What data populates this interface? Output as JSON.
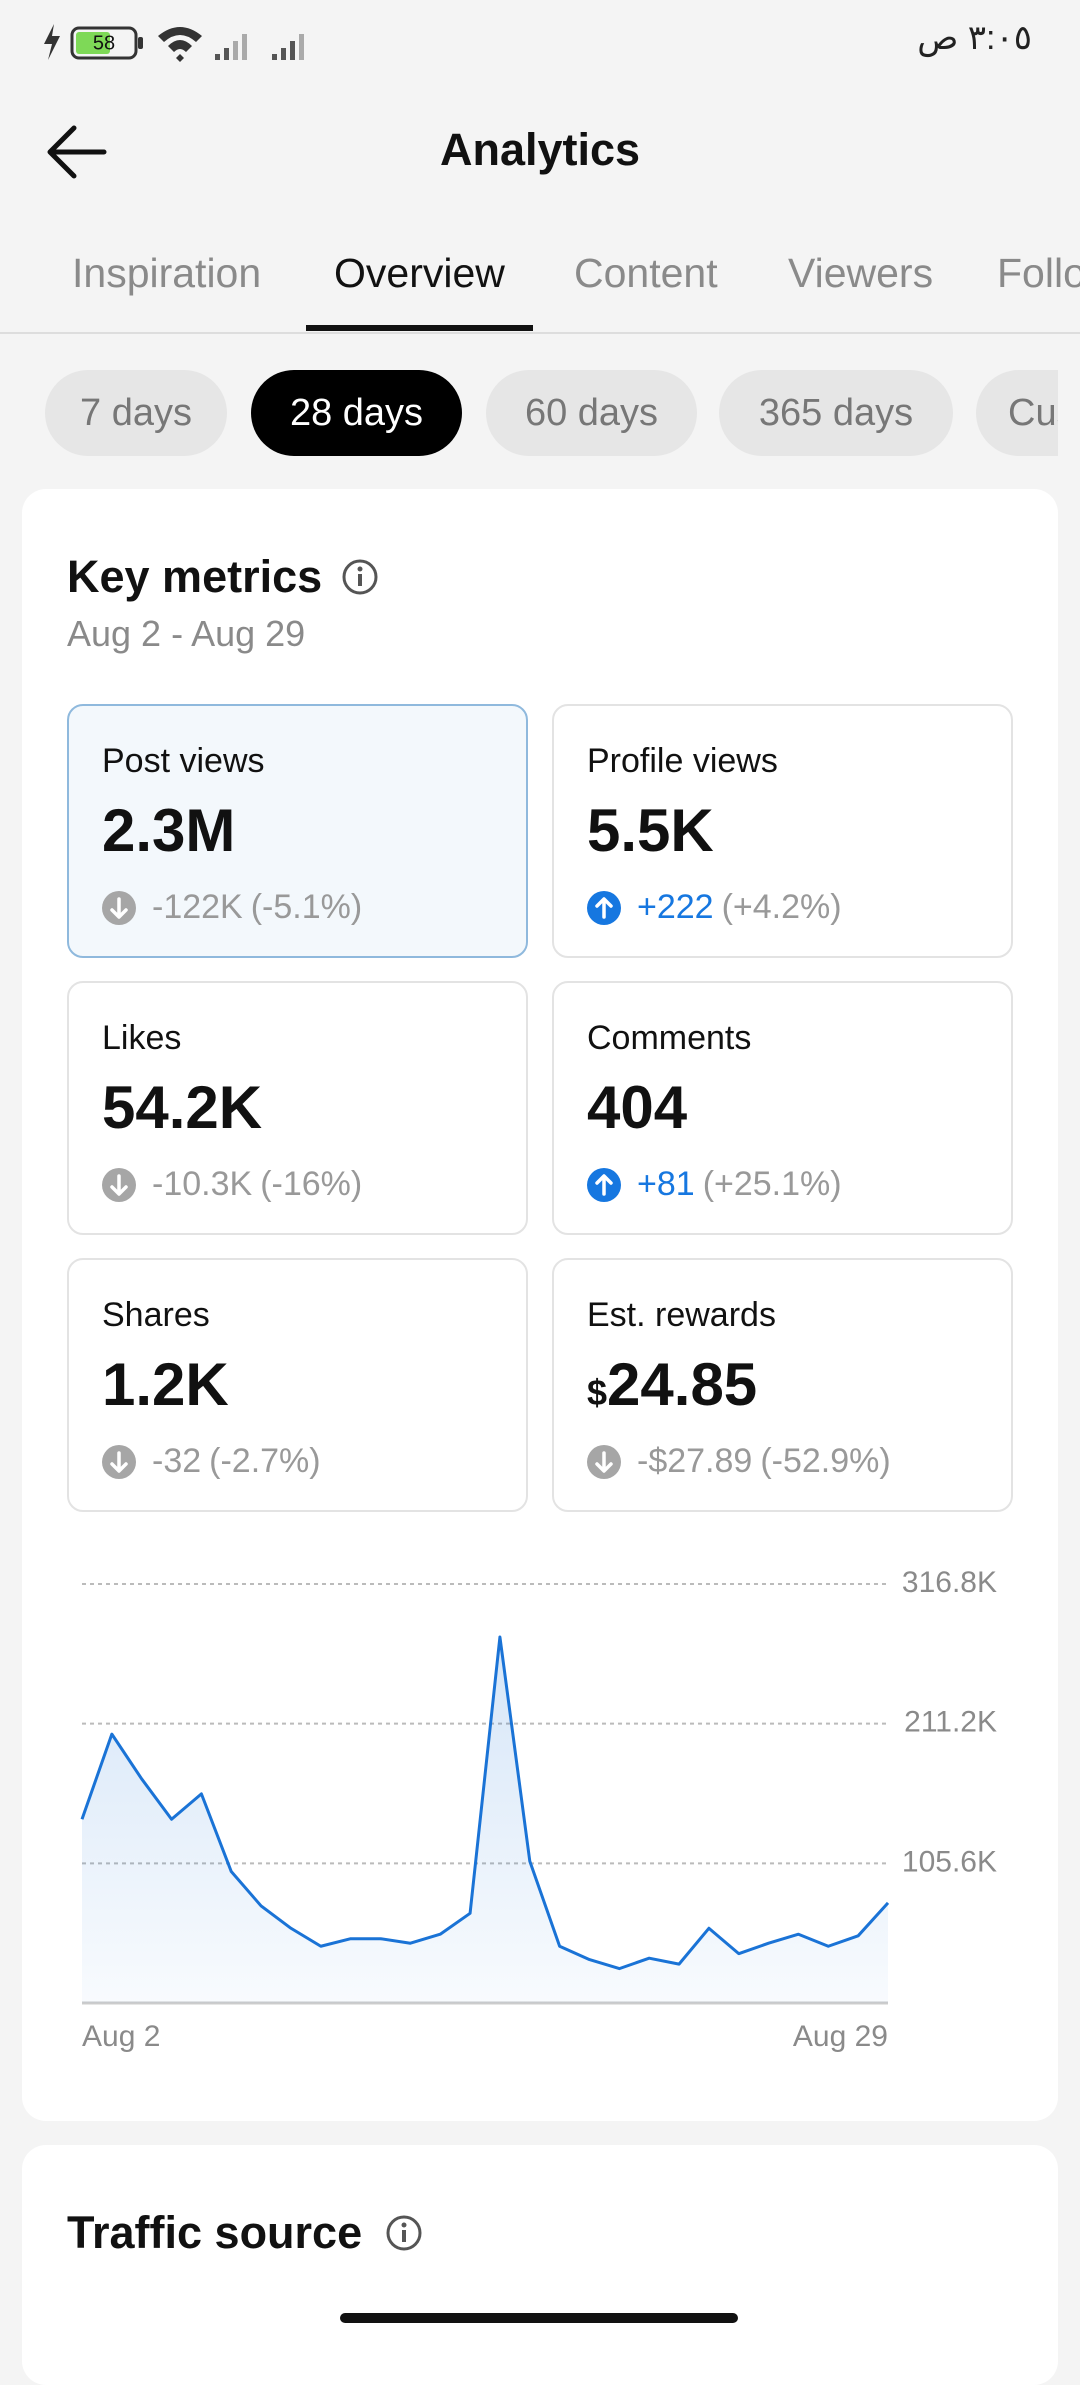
{
  "status_bar": {
    "battery": "58",
    "time": "٣:٠٥ ص"
  },
  "header": {
    "title": "Analytics"
  },
  "tabs": [
    {
      "label": "Inspiration"
    },
    {
      "label": "Overview",
      "selected": true
    },
    {
      "label": "Content"
    },
    {
      "label": "Viewers"
    },
    {
      "label": "Following"
    }
  ],
  "periods": [
    {
      "label": "7 days"
    },
    {
      "label": "28 days",
      "selected": true
    },
    {
      "label": "60 days"
    },
    {
      "label": "365 days"
    },
    {
      "label": "Custom"
    }
  ],
  "key_metrics": {
    "title": "Key metrics",
    "date_range": "Aug 2 - Aug 29",
    "metrics": [
      {
        "label": "Post views",
        "value": "2.3M",
        "change": "-122K",
        "percent": "(-5.1%)",
        "trend": "down",
        "selected": true
      },
      {
        "label": "Profile views",
        "value": "5.5K",
        "change": "+222",
        "percent": "(+4.2%)",
        "trend": "up"
      },
      {
        "label": "Likes",
        "value": "54.2K",
        "change": "-10.3K",
        "percent": "(-16%)",
        "trend": "down"
      },
      {
        "label": "Comments",
        "value": "404",
        "change": "+81",
        "percent": "(+25.1%)",
        "trend": "up"
      },
      {
        "label": "Shares",
        "value": "1.2K",
        "change": "-32",
        "percent": "(-2.7%)",
        "trend": "down"
      },
      {
        "label": "Est. rewards",
        "currency": "$",
        "value": "24.85",
        "change": "-$27.89",
        "percent": "(-52.9%)",
        "trend": "down"
      }
    ],
    "chart_data": {
      "type": "line",
      "categories": [
        "Aug 2",
        null,
        null,
        null,
        null,
        null,
        null,
        null,
        null,
        null,
        null,
        null,
        null,
        null,
        null,
        null,
        null,
        null,
        null,
        null,
        null,
        null,
        null,
        null,
        null,
        null,
        null,
        "Aug 29"
      ],
      "values": [
        138900,
        203300,
        169400,
        138900,
        158100,
        99400,
        73400,
        56500,
        42900,
        48600,
        48600,
        45200,
        52000,
        67800,
        276700,
        107300,
        42900,
        32800,
        26000,
        33900,
        29400,
        56500,
        37300,
        45200,
        52000,
        42900,
        50800,
        75700
      ],
      "color": "#1a73d6",
      "ylim": [
        0,
        316800
      ],
      "yticks": [
        {
          "value": 105600,
          "label": "105.6K"
        },
        {
          "value": 211200,
          "label": "211.2K"
        },
        {
          "value": 316800,
          "label": "316.8K"
        }
      ],
      "grid": true
    }
  },
  "traffic_source": {
    "title": "Traffic source"
  }
}
